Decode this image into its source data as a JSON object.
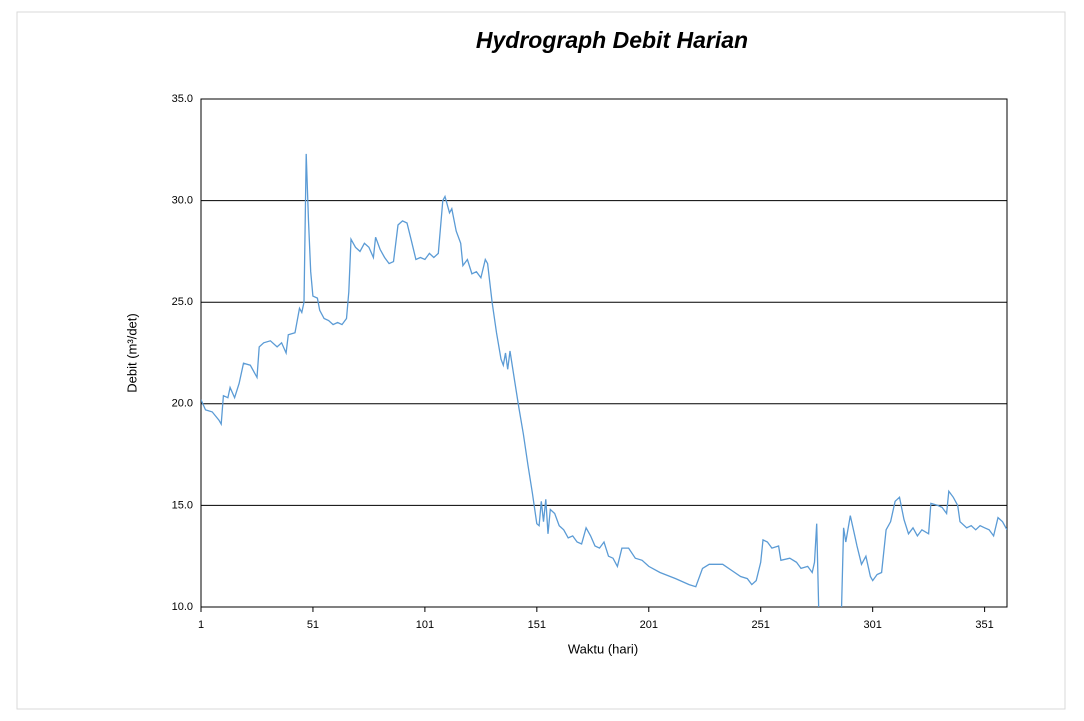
{
  "chart_data": {
    "type": "line",
    "title": "Hydrograph Debit Harian",
    "x_label": "Waktu (hari)",
    "y_label": "Debit (m³/det)",
    "xlim": [
      1,
      361
    ],
    "xticks": [
      1,
      51,
      101,
      151,
      201,
      251,
      301,
      351
    ],
    "ylim": [
      10,
      35
    ],
    "yticks": [
      {
        "value": 10,
        "label": "10.0"
      },
      {
        "value": 15,
        "label": "15.0"
      },
      {
        "value": 20,
        "label": "20.0"
      },
      {
        "value": 25,
        "label": "25.0"
      },
      {
        "value": 30,
        "label": "30.0"
      },
      {
        "value": 35,
        "label": "35.0"
      }
    ],
    "grid": true,
    "x": [
      1,
      3,
      6,
      9,
      10,
      11,
      13,
      14,
      16,
      18,
      20,
      23,
      26,
      27,
      29,
      32,
      35,
      37,
      39,
      40,
      43,
      45,
      46,
      47,
      48,
      49,
      50,
      51,
      53,
      54,
      56,
      58,
      60,
      62,
      64,
      66,
      67,
      68,
      70,
      72,
      74,
      76,
      78,
      79,
      81,
      83,
      85,
      87,
      89,
      91,
      93,
      95,
      97,
      99,
      101,
      103,
      105,
      107,
      109,
      110,
      112,
      113,
      115,
      117,
      118,
      120,
      122,
      124,
      126,
      128,
      129,
      131,
      133,
      135,
      136,
      137,
      138,
      139,
      141,
      143,
      145,
      147,
      149,
      151,
      152,
      153,
      154,
      155,
      156,
      157,
      159,
      161,
      163,
      165,
      167,
      169,
      171,
      173,
      175,
      177,
      179,
      181,
      183,
      185,
      187,
      189,
      192,
      195,
      198,
      201,
      206,
      213,
      219,
      222,
      225,
      228,
      234,
      238,
      242,
      245,
      247,
      249,
      251,
      252,
      254,
      256,
      259,
      260,
      264,
      267,
      269,
      272,
      274,
      275,
      276,
      277,
      287,
      288,
      289,
      291,
      293,
      294,
      296,
      298,
      300,
      301,
      303,
      305,
      307,
      309,
      311,
      313,
      315,
      317,
      319,
      321,
      323,
      326,
      327,
      330,
      332,
      334,
      335,
      337,
      339,
      340,
      343,
      345,
      347,
      349,
      351,
      353,
      355,
      357,
      359,
      361
    ],
    "series": [
      {
        "name": "Debit",
        "color": "#5b9bd5",
        "values": [
          20.2,
          19.7,
          19.6,
          19.2,
          19.0,
          20.4,
          20.3,
          20.8,
          20.3,
          21.0,
          22.0,
          21.9,
          21.3,
          22.8,
          23.0,
          23.1,
          22.8,
          23.0,
          22.5,
          23.4,
          23.5,
          24.7,
          24.5,
          25.0,
          32.3,
          29.0,
          26.5,
          25.3,
          25.2,
          24.6,
          24.2,
          24.1,
          23.9,
          24.0,
          23.9,
          24.2,
          25.5,
          28.1,
          27.7,
          27.5,
          27.9,
          27.7,
          27.2,
          28.2,
          27.6,
          27.2,
          26.9,
          27.0,
          28.8,
          29.0,
          28.9,
          28.0,
          27.1,
          27.2,
          27.1,
          27.4,
          27.2,
          27.4,
          30.0,
          30.2,
          29.4,
          29.6,
          28.5,
          27.9,
          26.8,
          27.1,
          26.4,
          26.5,
          26.2,
          27.1,
          26.9,
          25.0,
          23.5,
          22.2,
          21.9,
          22.5,
          21.7,
          22.6,
          21.2,
          19.8,
          18.5,
          17.0,
          15.6,
          14.1,
          14.0,
          15.2,
          14.2,
          15.3,
          13.6,
          14.8,
          14.6,
          14.0,
          13.8,
          13.4,
          13.5,
          13.2,
          13.1,
          13.9,
          13.5,
          13.0,
          12.9,
          13.2,
          12.5,
          12.4,
          12.0,
          12.9,
          12.9,
          12.4,
          12.3,
          12.0,
          11.7,
          11.4,
          11.1,
          11.0,
          11.9,
          12.1,
          12.1,
          11.8,
          11.5,
          11.4,
          11.1,
          11.3,
          12.2,
          13.3,
          13.2,
          12.9,
          13.0,
          12.3,
          12.4,
          12.2,
          11.9,
          12.0,
          11.7,
          12.2,
          14.1,
          9.5,
          9.5,
          13.9,
          13.2,
          14.5,
          13.5,
          13.0,
          12.1,
          12.5,
          11.5,
          11.3,
          11.6,
          11.7,
          13.8,
          14.2,
          15.2,
          15.4,
          14.3,
          13.6,
          13.9,
          13.5,
          13.8,
          13.6,
          15.1,
          15.0,
          14.9,
          14.6,
          15.7,
          15.4,
          15.0,
          14.2,
          13.9,
          14.0,
          13.8,
          14.0,
          13.9,
          13.8,
          13.5,
          14.4,
          14.2,
          13.8
        ]
      }
    ]
  }
}
